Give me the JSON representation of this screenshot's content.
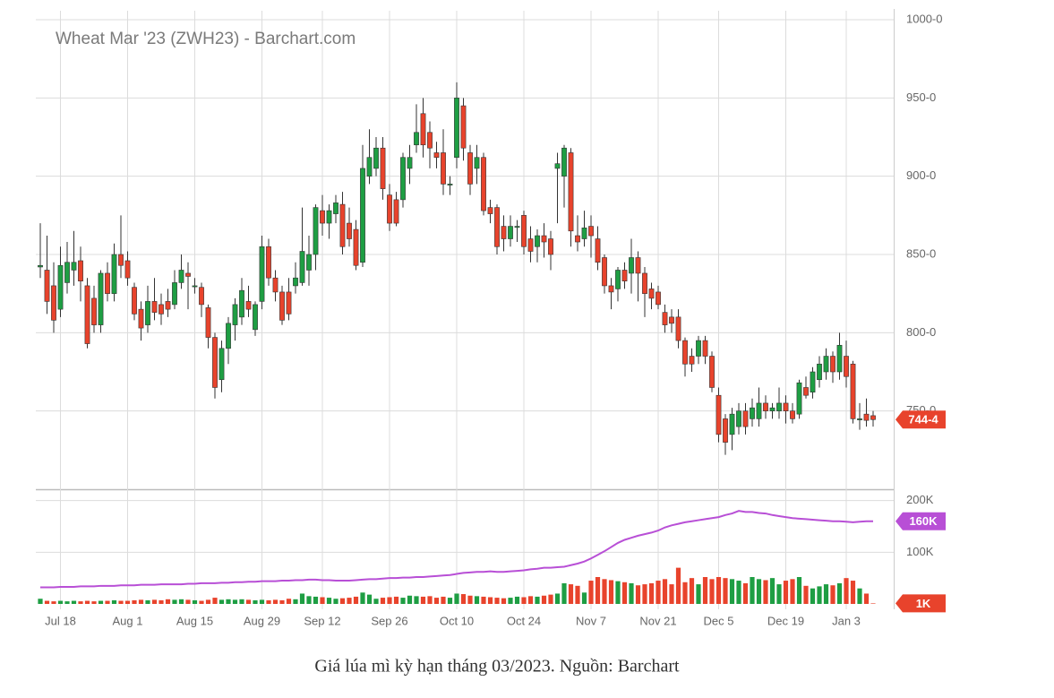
{
  "chart_data": {
    "type": "candlestick",
    "title": "Wheat Mar '23 (ZWH23) - Barchart.com",
    "caption": "Giá lúa mì kỳ hạn tháng 03/2023. Nguồn: Barchart",
    "categories": [
      null,
      null,
      null,
      "Jul 18",
      null,
      null,
      null,
      null,
      null,
      null,
      null,
      null,
      null,
      "Aug 1",
      null,
      null,
      null,
      null,
      null,
      null,
      null,
      null,
      null,
      "Aug 15",
      null,
      null,
      null,
      null,
      null,
      null,
      null,
      null,
      null,
      "Aug 29",
      null,
      null,
      null,
      null,
      null,
      null,
      null,
      null,
      "Sep 12",
      null,
      null,
      null,
      null,
      null,
      null,
      null,
      null,
      null,
      "Sep 26",
      null,
      null,
      null,
      null,
      null,
      null,
      null,
      null,
      null,
      "Oct 10",
      null,
      null,
      null,
      null,
      null,
      null,
      null,
      null,
      null,
      "Oct 24",
      null,
      null,
      null,
      null,
      null,
      null,
      null,
      null,
      null,
      "Nov 7",
      null,
      null,
      null,
      null,
      null,
      null,
      null,
      null,
      null,
      "Nov 21",
      null,
      null,
      null,
      null,
      null,
      null,
      null,
      null,
      "Dec 5",
      null,
      null,
      null,
      null,
      null,
      null,
      null,
      null,
      null,
      "Dec 19",
      null,
      null,
      null,
      null,
      null,
      null,
      null,
      null,
      "Jan 3",
      null,
      null,
      null,
      null
    ],
    "open": [
      842,
      840,
      830,
      815,
      832,
      840,
      846,
      830,
      822,
      805,
      838,
      825,
      850,
      846,
      829,
      815,
      805,
      820,
      818,
      820,
      818,
      832,
      838,
      830,
      829,
      816,
      797,
      770,
      790,
      805,
      810,
      820,
      802,
      820,
      855,
      835,
      826,
      826,
      830,
      832,
      840,
      850,
      878,
      870,
      876,
      882,
      870,
      866,
      845,
      900,
      905,
      918,
      888,
      885,
      885,
      905,
      920,
      940,
      928,
      915,
      915,
      895,
      912,
      945,
      915,
      905,
      912,
      880,
      880,
      868,
      860,
      868,
      875,
      860,
      855,
      862,
      860,
      905,
      900,
      915,
      862,
      860,
      868,
      860,
      848,
      830,
      828,
      840,
      838,
      848,
      838,
      828,
      826,
      813,
      810,
      810,
      795,
      785,
      785,
      795,
      785,
      760,
      745,
      735,
      740,
      750,
      745,
      745,
      755,
      750,
      750,
      755,
      750,
      748,
      765,
      762,
      770,
      775,
      785,
      775,
      785,
      780,
      745,
      748,
      747
    ],
    "high": [
      870,
      862,
      845,
      855,
      858,
      865,
      855,
      835,
      830,
      840,
      845,
      857,
      875,
      852,
      832,
      820,
      830,
      835,
      825,
      828,
      840,
      850,
      845,
      835,
      832,
      818,
      800,
      795,
      810,
      822,
      835,
      830,
      820,
      862,
      860,
      840,
      830,
      835,
      845,
      880,
      862,
      882,
      888,
      882,
      888,
      890,
      880,
      872,
      920,
      930,
      925,
      925,
      895,
      890,
      915,
      920,
      946,
      950,
      935,
      922,
      930,
      900,
      960,
      950,
      920,
      920,
      915,
      885,
      882,
      875,
      875,
      872,
      878,
      868,
      866,
      870,
      865,
      915,
      920,
      918,
      875,
      878,
      875,
      868,
      850,
      835,
      842,
      845,
      860,
      852,
      842,
      832,
      830,
      818,
      815,
      815,
      797,
      790,
      798,
      798,
      788,
      765,
      748,
      752,
      755,
      755,
      758,
      765,
      760,
      755,
      765,
      760,
      755,
      770,
      772,
      778,
      785,
      790,
      788,
      800,
      795,
      782,
      755,
      758,
      750
    ],
    "low": [
      835,
      812,
      800,
      810,
      825,
      830,
      820,
      790,
      800,
      800,
      820,
      820,
      835,
      830,
      808,
      795,
      800,
      808,
      805,
      810,
      815,
      828,
      815,
      825,
      810,
      790,
      758,
      762,
      780,
      795,
      805,
      810,
      798,
      815,
      830,
      820,
      805,
      808,
      825,
      830,
      830,
      840,
      862,
      860,
      870,
      850,
      855,
      840,
      842,
      895,
      900,
      885,
      865,
      868,
      880,
      895,
      915,
      912,
      905,
      905,
      888,
      888,
      905,
      910,
      888,
      895,
      875,
      870,
      850,
      852,
      855,
      858,
      850,
      845,
      845,
      848,
      840,
      870,
      880,
      855,
      852,
      855,
      848,
      840,
      825,
      815,
      820,
      828,
      825,
      820,
      810,
      815,
      815,
      800,
      800,
      790,
      772,
      775,
      780,
      780,
      762,
      730,
      722,
      725,
      735,
      735,
      740,
      740,
      745,
      745,
      745,
      742,
      742,
      745,
      758,
      758,
      765,
      770,
      768,
      770,
      765,
      742,
      738,
      740,
      740
    ],
    "close": [
      843,
      820,
      808,
      843,
      845,
      845,
      833,
      793,
      805,
      838,
      825,
      850,
      843,
      835,
      812,
      803,
      820,
      813,
      812,
      815,
      832,
      840,
      836,
      830,
      818,
      797,
      765,
      790,
      806,
      818,
      827,
      815,
      818,
      855,
      835,
      826,
      808,
      812,
      835,
      852,
      850,
      880,
      870,
      878,
      883,
      855,
      860,
      843,
      905,
      912,
      918,
      892,
      870,
      870,
      912,
      912,
      928,
      920,
      918,
      912,
      895,
      895,
      950,
      918,
      895,
      912,
      878,
      876,
      855,
      860,
      868,
      868,
      855,
      852,
      862,
      858,
      850,
      908,
      918,
      865,
      858,
      867,
      862,
      845,
      830,
      826,
      840,
      833,
      848,
      838,
      825,
      822,
      818,
      805,
      806,
      795,
      780,
      780,
      795,
      785,
      765,
      735,
      730,
      748,
      750,
      740,
      752,
      755,
      750,
      752,
      755,
      750,
      745,
      768,
      760,
      775,
      780,
      785,
      775,
      792,
      772,
      745,
      745,
      744,
      744.5
    ],
    "up_color": "#1e9e43",
    "down_color": "#e8432c",
    "ylim": [
      700,
      1000
    ],
    "yticks": [
      {
        "value": 750,
        "label": "750-0"
      },
      {
        "value": 800,
        "label": "800-0"
      },
      {
        "value": 850,
        "label": "850-0"
      },
      {
        "value": 900,
        "label": "900-0"
      },
      {
        "value": 950,
        "label": "950-0"
      },
      {
        "value": 1000,
        "label": "1000-0"
      }
    ],
    "price_marker": {
      "value": 744.5,
      "label": "744-4"
    },
    "grid": true,
    "volume": {
      "ylim": [
        0,
        215000
      ],
      "yticks": [
        {
          "value": 100000,
          "label": "100K"
        },
        {
          "value": 200000,
          "label": "200K"
        }
      ],
      "values": [
        10000,
        6000,
        5000,
        6000,
        5000,
        6000,
        5000,
        6000,
        5000,
        6000,
        6000,
        7000,
        6000,
        6000,
        7000,
        8000,
        7000,
        8000,
        7000,
        9000,
        8000,
        9000,
        8000,
        7000,
        6000,
        8000,
        12000,
        8000,
        9000,
        8000,
        9000,
        8000,
        7000,
        8000,
        7000,
        8000,
        7000,
        10000,
        9000,
        20000,
        15000,
        14000,
        13000,
        12000,
        10000,
        11000,
        12000,
        14000,
        22000,
        18000,
        10000,
        12000,
        13000,
        14000,
        12000,
        16000,
        15000,
        14000,
        15000,
        12000,
        14000,
        12000,
        20000,
        19000,
        16000,
        15000,
        14000,
        13000,
        12000,
        11000,
        12000,
        14000,
        13000,
        15000,
        14000,
        16000,
        18000,
        20000,
        40000,
        38000,
        35000,
        22000,
        45000,
        52000,
        48000,
        46000,
        44000,
        42000,
        40000,
        36000,
        38000,
        40000,
        45000,
        48000,
        38000,
        70000,
        42000,
        50000,
        38000,
        52000,
        48000,
        52000,
        50000,
        48000,
        45000,
        40000,
        52000,
        48000,
        46000,
        50000,
        38000,
        45000,
        48000,
        52000,
        35000,
        30000,
        34000,
        38000,
        36000,
        40000,
        50000,
        45000,
        30000,
        20000,
        1000
      ],
      "marker": {
        "value": 1000,
        "label": "1K"
      }
    },
    "open_interest": {
      "color": "#b84fd6",
      "values": [
        32000,
        32000,
        32000,
        33000,
        33000,
        33000,
        34000,
        34000,
        34000,
        35000,
        35000,
        35000,
        36000,
        36000,
        36000,
        37000,
        37000,
        37000,
        38000,
        38000,
        38000,
        38000,
        39000,
        39000,
        40000,
        40000,
        40000,
        41000,
        41000,
        42000,
        42000,
        43000,
        43000,
        44000,
        44000,
        44000,
        45000,
        45000,
        46000,
        46000,
        47000,
        47000,
        46000,
        46000,
        45000,
        45000,
        45000,
        46000,
        47000,
        48000,
        48000,
        49000,
        50000,
        50000,
        51000,
        51000,
        52000,
        52000,
        53000,
        54000,
        55000,
        56000,
        58000,
        60000,
        61000,
        62000,
        62000,
        63000,
        62000,
        62000,
        63000,
        64000,
        65000,
        67000,
        68000,
        70000,
        70000,
        71000,
        72000,
        75000,
        78000,
        82000,
        88000,
        95000,
        102000,
        110000,
        118000,
        124000,
        128000,
        132000,
        135000,
        138000,
        142000,
        148000,
        152000,
        155000,
        158000,
        160000,
        162000,
        164000,
        166000,
        168000,
        172000,
        175000,
        180000,
        178000,
        178000,
        176000,
        175000,
        172000,
        170000,
        168000,
        166000,
        165000,
        164000,
        163000,
        162000,
        161000,
        160000,
        160000,
        159000,
        158000,
        159000,
        160000,
        160000
      ],
      "marker": {
        "value": 160000,
        "label": "160K"
      }
    }
  }
}
